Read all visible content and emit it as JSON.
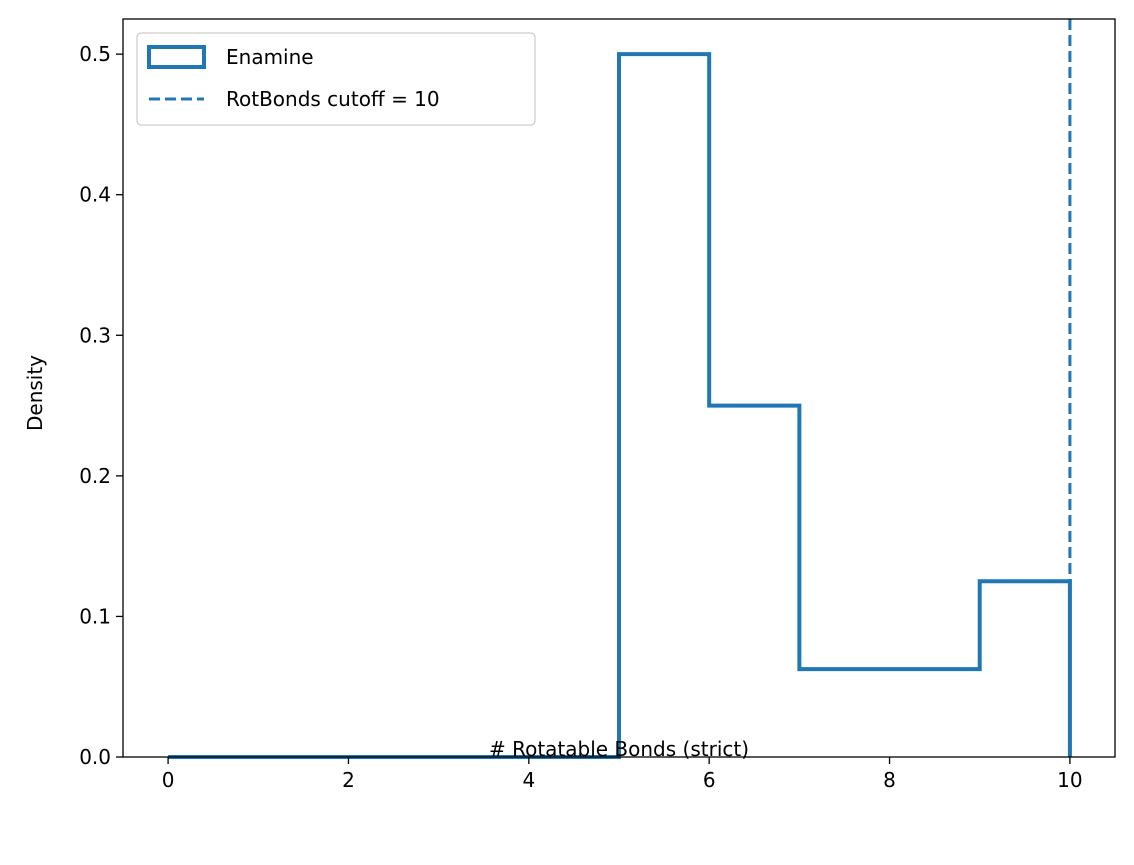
{
  "chart_data": {
    "type": "histogram",
    "xlabel": "# Rotatable Bonds (strict)",
    "ylabel": "Density",
    "xlim": [
      -0.5,
      10.5
    ],
    "ylim": [
      0,
      0.525
    ],
    "xticks": [
      0,
      2,
      4,
      6,
      8,
      10
    ],
    "xtick_labels": [
      "0",
      "2",
      "4",
      "6",
      "8",
      "10"
    ],
    "yticks": [
      0.0,
      0.1,
      0.2,
      0.3,
      0.4,
      0.5
    ],
    "ytick_labels": [
      "0.0",
      "0.1",
      "0.2",
      "0.3",
      "0.4",
      "0.5"
    ],
    "grid": false,
    "legend_placement": "top-left",
    "series": [
      {
        "name": "Enamine",
        "style": "step",
        "color": "#1f77b4",
        "bin_edges": [
          0,
          5,
          6,
          7,
          9,
          10
        ],
        "density": [
          0.0,
          0.5,
          0.25,
          0.0625,
          0.125
        ]
      }
    ],
    "reference_lines": [
      {
        "name": "RotBonds cutoff = 10",
        "x": 10,
        "style": "dashed",
        "color": "#1f77b4"
      }
    ]
  }
}
